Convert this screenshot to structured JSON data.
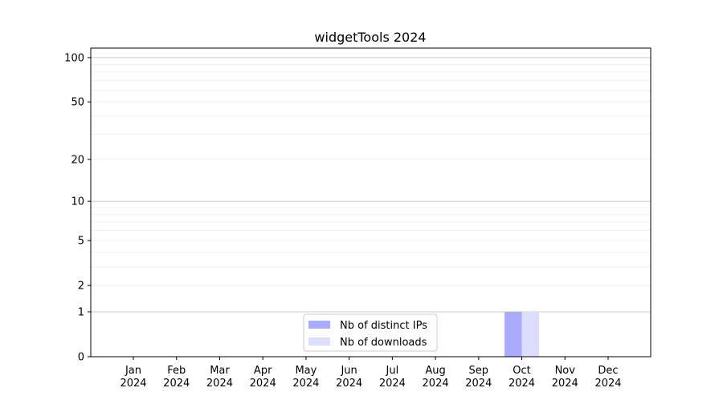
{
  "chart_data": {
    "type": "bar",
    "title": "widgetTools 2024",
    "xlabel": "",
    "ylabel": "",
    "yscale": "log(1+y)",
    "ylim": [
      0,
      116
    ],
    "yticks": [
      0,
      1,
      2,
      5,
      10,
      20,
      50,
      100
    ],
    "categories": [
      "Jan\n2024",
      "Feb\n2024",
      "Mar\n2024",
      "Apr\n2024",
      "May\n2024",
      "Jun\n2024",
      "Jul\n2024",
      "Aug\n2024",
      "Sep\n2024",
      "Oct\n2024",
      "Nov\n2024",
      "Dec\n2024"
    ],
    "series": [
      {
        "name": "Nb of distinct IPs",
        "color": "#aaaaff",
        "values": [
          0,
          0,
          0,
          0,
          0,
          0,
          0,
          0,
          0,
          1,
          0,
          0
        ]
      },
      {
        "name": "Nb of downloads",
        "color": "#ddddff",
        "values": [
          0,
          0,
          0,
          0,
          0,
          0,
          0,
          0,
          0,
          1,
          0,
          0
        ]
      }
    ],
    "grid": true,
    "legend": "lower-center"
  }
}
